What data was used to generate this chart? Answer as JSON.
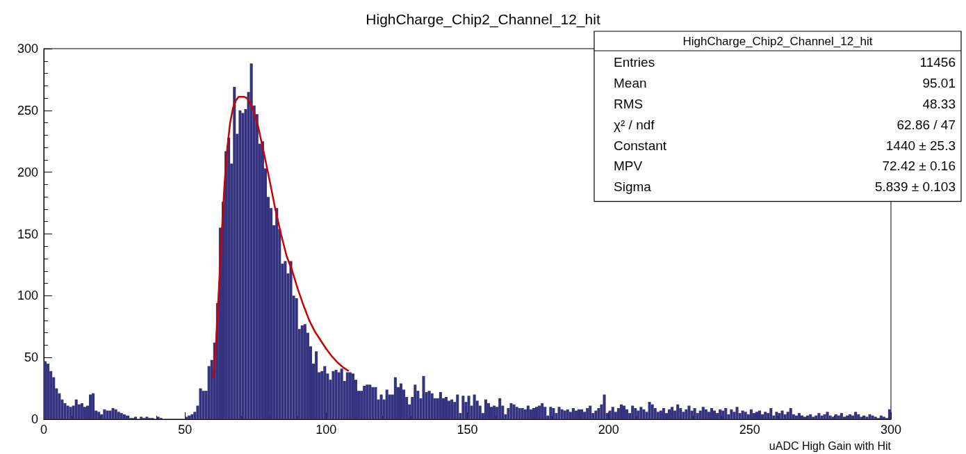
{
  "chart_data": {
    "type": "histogram",
    "title": "HighCharge_Chip2_Channel_12_hit",
    "xlabel": "uADC High Gain with Hit",
    "bins": [
      0,
      1,
      2,
      3,
      4,
      5,
      6,
      7,
      8,
      9,
      10,
      11,
      12,
      13,
      14,
      15,
      16,
      17,
      18,
      19,
      20,
      21,
      22,
      23,
      24,
      25,
      26,
      27,
      28,
      29,
      30,
      31,
      32,
      33,
      34,
      35,
      36,
      37,
      38,
      39,
      40,
      41,
      42,
      43,
      44,
      45,
      46,
      47,
      48,
      49,
      50,
      51,
      52,
      53,
      54,
      55,
      56,
      57,
      58,
      59,
      60,
      61,
      62,
      63,
      64,
      65,
      66,
      67,
      68,
      69,
      70,
      71,
      72,
      73,
      74,
      75,
      76,
      77,
      78,
      79,
      80,
      81,
      82,
      83,
      84,
      85,
      86,
      87,
      88,
      89,
      90,
      91,
      92,
      93,
      94,
      95,
      96,
      97,
      98,
      99,
      100,
      101,
      102,
      103,
      104,
      105,
      106,
      107,
      108,
      109,
      110,
      111,
      112,
      113,
      114,
      115,
      116,
      117,
      118,
      119,
      120,
      121,
      122,
      123,
      124,
      125,
      126,
      127,
      128,
      129,
      130,
      131,
      132,
      133,
      134,
      135,
      136,
      137,
      138,
      139,
      140,
      141,
      142,
      143,
      144,
      145,
      146,
      147,
      148,
      149,
      150,
      151,
      152,
      153,
      154,
      155,
      156,
      157,
      158,
      159,
      160,
      161,
      162,
      163,
      164,
      165,
      166,
      167,
      168,
      169,
      170,
      171,
      172,
      173,
      174,
      175,
      176,
      177,
      178,
      179,
      180,
      181,
      182,
      183,
      184,
      185,
      186,
      187,
      188,
      189,
      190,
      191,
      192,
      193,
      194,
      195,
      196,
      197,
      198,
      199,
      200,
      201,
      202,
      203,
      204,
      205,
      206,
      207,
      208,
      209,
      210,
      211,
      212,
      213,
      214,
      215,
      216,
      217,
      218,
      219,
      220,
      221,
      222,
      223,
      224,
      225,
      226,
      227,
      228,
      229,
      230,
      231,
      232,
      233,
      234,
      235,
      236,
      237,
      238,
      239,
      240,
      241,
      242,
      243,
      244,
      245,
      246,
      247,
      248,
      249,
      250,
      251,
      252,
      253,
      254,
      255,
      256,
      257,
      258,
      259,
      260,
      261,
      262,
      263,
      264,
      265,
      266,
      267,
      268,
      269,
      270,
      271,
      272,
      273,
      274,
      275,
      276,
      277,
      278,
      279,
      280,
      281,
      282,
      283,
      284,
      285,
      286,
      287,
      288,
      289,
      290,
      291,
      292,
      293,
      294,
      295,
      296,
      297,
      298,
      299,
      300
    ],
    "series": [
      {
        "color": "#33337f",
        "values": [
          47,
          45,
          39,
          34,
          25,
          21,
          16,
          13,
          11,
          10,
          11,
          16,
          12,
          13,
          10,
          11,
          20,
          21,
          7,
          6,
          4,
          8,
          7,
          7,
          9,
          8,
          6,
          5,
          4,
          3,
          1,
          1,
          2,
          0,
          2,
          1,
          2,
          1,
          1,
          0,
          2,
          1,
          0,
          0,
          0,
          0,
          0,
          0,
          0,
          0,
          2,
          3,
          4,
          6,
          11,
          25,
          23,
          23,
          43,
          48,
          62,
          94,
          155,
          176,
          217,
          228,
          207,
          269,
          231,
          250,
          248,
          251,
          265,
          288,
          254,
          247,
          223,
          225,
          203,
          180,
          171,
          157,
          171,
          154,
          126,
          128,
          118,
          128,
          100,
          98,
          73,
          76,
          77,
          70,
          59,
          45,
          55,
          38,
          39,
          43,
          37,
          32,
          39,
          40,
          38,
          41,
          31,
          38,
          38,
          37,
          32,
          23,
          23,
          27,
          28,
          28,
          26,
          26,
          16,
          20,
          16,
          24,
          20,
          20,
          34,
          26,
          29,
          24,
          18,
          12,
          18,
          28,
          23,
          17,
          35,
          22,
          23,
          21,
          17,
          17,
          22,
          17,
          18,
          15,
          16,
          14,
          20,
          5,
          19,
          14,
          19,
          11,
          20,
          15,
          11,
          5,
          16,
          13,
          10,
          11,
          10,
          17,
          11,
          4,
          9,
          13,
          12,
          10,
          9,
          9,
          8,
          11,
          8,
          9,
          10,
          11,
          13,
          10,
          3,
          10,
          9,
          5,
          10,
          8,
          7,
          8,
          6,
          9,
          7,
          8,
          8,
          6,
          9,
          11,
          5,
          7,
          9,
          12,
          20,
          5,
          7,
          10,
          6,
          9,
          12,
          11,
          8,
          5,
          11,
          9,
          7,
          10,
          8,
          6,
          14,
          12,
          9,
          6,
          7,
          9,
          5,
          8,
          10,
          7,
          12,
          9,
          6,
          8,
          11,
          7,
          9,
          5,
          7,
          10,
          8,
          6,
          9,
          7,
          5,
          8,
          7,
          9,
          4,
          8,
          6,
          10,
          5,
          7,
          6,
          4,
          8,
          5,
          6,
          7,
          4,
          6,
          5,
          9,
          3,
          6,
          5,
          7,
          4,
          6,
          9,
          4,
          3,
          5,
          3,
          2,
          3,
          4,
          2,
          3,
          5,
          3,
          4,
          6,
          3,
          2,
          4,
          3,
          5,
          2,
          3,
          4,
          3,
          6,
          4,
          2,
          3,
          2,
          4,
          3,
          2,
          1,
          3,
          2,
          1,
          8
        ]
      },
      {
        "type": "line",
        "color": "#cc0000",
        "x": [
          60,
          61,
          62,
          63,
          64,
          65,
          66,
          67,
          68,
          69,
          70,
          71,
          72,
          73,
          74,
          76,
          78,
          80,
          82,
          84,
          86,
          88,
          90,
          92,
          94,
          96,
          98,
          100,
          102,
          104,
          106,
          108
        ],
        "values": [
          33,
          62,
          105,
          150,
          190,
          220,
          240,
          252,
          258,
          261,
          261,
          261,
          260,
          256,
          252,
          236,
          215,
          193,
          170,
          150,
          132,
          120,
          105,
          92,
          80,
          71,
          64,
          57,
          51,
          46,
          42,
          39
        ]
      }
    ],
    "xlim": [
      0,
      300
    ],
    "xticks": [
      0,
      50,
      100,
      150,
      200,
      250,
      300
    ],
    "ylim": [
      0,
      300
    ],
    "yticks": [
      0,
      50,
      100,
      150,
      200,
      250,
      300
    ],
    "marker": "none",
    "line_style": "solid",
    "grid": false,
    "annotations": [
      "HighCharge_Chip2_Channel_12_hit",
      "Entries",
      "11456",
      "Mean",
      "95.01",
      "RMS",
      "48.33",
      "χ² / ndf",
      "62.86 / 47",
      "Constant",
      "1440 ± 25.3",
      "MPV",
      "72.42 ± 0.16",
      "Sigma",
      "5.839 ± 0.103"
    ]
  }
}
